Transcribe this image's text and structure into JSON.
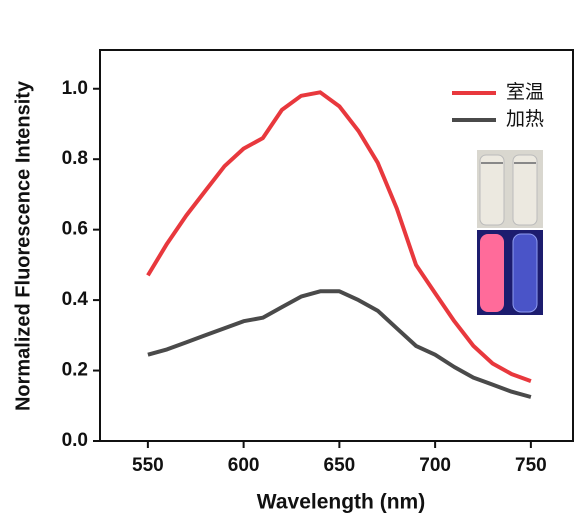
{
  "chart_data": {
    "type": "line",
    "x_label": "Wavelength (nm)",
    "y_label": "Normalized Fluorescence Intensity",
    "x": [
      550,
      560,
      570,
      580,
      590,
      600,
      610,
      620,
      630,
      640,
      650,
      660,
      670,
      680,
      690,
      700,
      710,
      720,
      730,
      740,
      750
    ],
    "series": [
      {
        "name": "室温",
        "color": "#e8383d",
        "values": [
          0.47,
          0.56,
          0.64,
          0.71,
          0.78,
          0.83,
          0.86,
          0.94,
          0.98,
          0.99,
          0.95,
          0.88,
          0.79,
          0.66,
          0.5,
          0.42,
          0.34,
          0.27,
          0.22,
          0.19,
          0.17
        ]
      },
      {
        "name": "加热",
        "color": "#4a4a4a",
        "values": [
          0.245,
          0.26,
          0.28,
          0.3,
          0.32,
          0.34,
          0.35,
          0.38,
          0.41,
          0.425,
          0.425,
          0.4,
          0.37,
          0.32,
          0.27,
          0.245,
          0.21,
          0.18,
          0.16,
          0.14,
          0.125
        ]
      }
    ],
    "xlim": [
      525,
      772
    ],
    "ylim": [
      0,
      1.11
    ],
    "xticks": [
      550,
      600,
      650,
      700,
      750
    ],
    "yticks": [
      {
        "value": 0,
        "label": "0.0"
      },
      0.2,
      0.4,
      0.6,
      0.8,
      {
        "value": 1,
        "label": "1.0"
      }
    ],
    "legend": "upper-right"
  }
}
